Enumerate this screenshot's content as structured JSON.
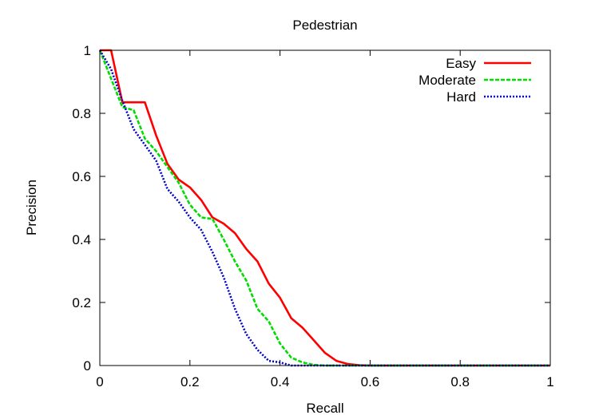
{
  "chart_data": {
    "type": "line",
    "title": "Pedestrian",
    "xlabel": "Recall",
    "ylabel": "Precision",
    "xlim": [
      0,
      1
    ],
    "ylim": [
      0,
      1
    ],
    "x_ticks": [
      0,
      0.2,
      0.4,
      0.6,
      0.8,
      1
    ],
    "x_tick_labels": [
      "0",
      "0.2",
      "0.4",
      "0.6",
      "0.8",
      "1"
    ],
    "y_ticks": [
      0,
      0.2,
      0.4,
      0.6,
      0.8,
      1
    ],
    "y_tick_labels": [
      "0",
      "0.2",
      "0.4",
      "0.6",
      "0.8",
      "1"
    ],
    "grid": false,
    "legend_position": "top-right",
    "series": [
      {
        "name": "Easy",
        "color": "#ff0000",
        "dash": "solid",
        "x": [
          0.0,
          0.025,
          0.05,
          0.075,
          0.1,
          0.125,
          0.15,
          0.175,
          0.2,
          0.225,
          0.25,
          0.275,
          0.3,
          0.325,
          0.35,
          0.375,
          0.4,
          0.425,
          0.45,
          0.475,
          0.5,
          0.525,
          0.55,
          0.575,
          0.6,
          1.0
        ],
        "y": [
          1.0,
          1.0,
          0.835,
          0.835,
          0.835,
          0.73,
          0.64,
          0.59,
          0.565,
          0.525,
          0.47,
          0.45,
          0.42,
          0.37,
          0.33,
          0.26,
          0.215,
          0.15,
          0.12,
          0.08,
          0.04,
          0.015,
          0.005,
          0.001,
          0.0,
          0.0
        ]
      },
      {
        "name": "Moderate",
        "color": "#00dd00",
        "dash": "dashed",
        "x": [
          0.0,
          0.025,
          0.05,
          0.075,
          0.1,
          0.125,
          0.15,
          0.175,
          0.2,
          0.225,
          0.25,
          0.275,
          0.3,
          0.325,
          0.35,
          0.375,
          0.4,
          0.425,
          0.45,
          0.475,
          0.5,
          1.0
        ],
        "y": [
          1.0,
          0.91,
          0.82,
          0.81,
          0.72,
          0.68,
          0.63,
          0.58,
          0.51,
          0.47,
          0.465,
          0.4,
          0.33,
          0.27,
          0.18,
          0.14,
          0.07,
          0.025,
          0.01,
          0.002,
          0.0,
          0.0
        ]
      },
      {
        "name": "Hard",
        "color": "#0000cc",
        "dash": "dotted",
        "x": [
          0.0,
          0.025,
          0.05,
          0.075,
          0.1,
          0.125,
          0.15,
          0.175,
          0.2,
          0.225,
          0.25,
          0.275,
          0.3,
          0.325,
          0.35,
          0.375,
          0.4,
          0.425,
          1.0
        ],
        "y": [
          1.0,
          0.94,
          0.84,
          0.75,
          0.7,
          0.65,
          0.56,
          0.52,
          0.47,
          0.43,
          0.36,
          0.28,
          0.18,
          0.1,
          0.05,
          0.015,
          0.01,
          0.0,
          0.0
        ]
      }
    ]
  }
}
